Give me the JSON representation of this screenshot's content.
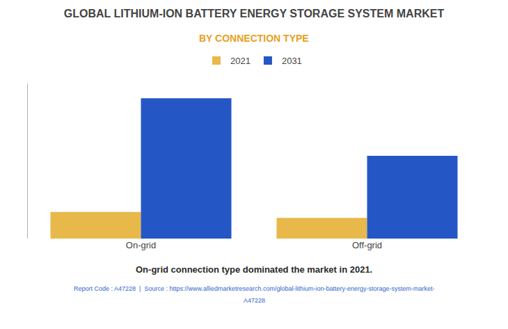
{
  "chart_data": {
    "type": "bar",
    "title": "GLOBAL LITHIUM-ION BATTERY ENERGY STORAGE SYSTEM MARKET",
    "subtitle": "BY CONNECTION TYPE",
    "categories": [
      "On-grid",
      "Off-grid"
    ],
    "series": [
      {
        "name": "2021",
        "color": "#E8B84B",
        "values": [
          0.18,
          0.14
        ]
      },
      {
        "name": "2031",
        "color": "#2457C5",
        "values": [
          0.95,
          0.56
        ]
      }
    ],
    "ylim": [
      0,
      1.05
    ],
    "yticks": [],
    "grid": false,
    "tick_labels": "x",
    "legend": "top",
    "annotations": [
      "On-grid connection type dominated the market in 2021.",
      "Report Code : A47228  |  Source : https://www.alliedmarketresearch.com/global-lithium-ion-battery-energy-storage-system-market-",
      "A47228"
    ]
  }
}
